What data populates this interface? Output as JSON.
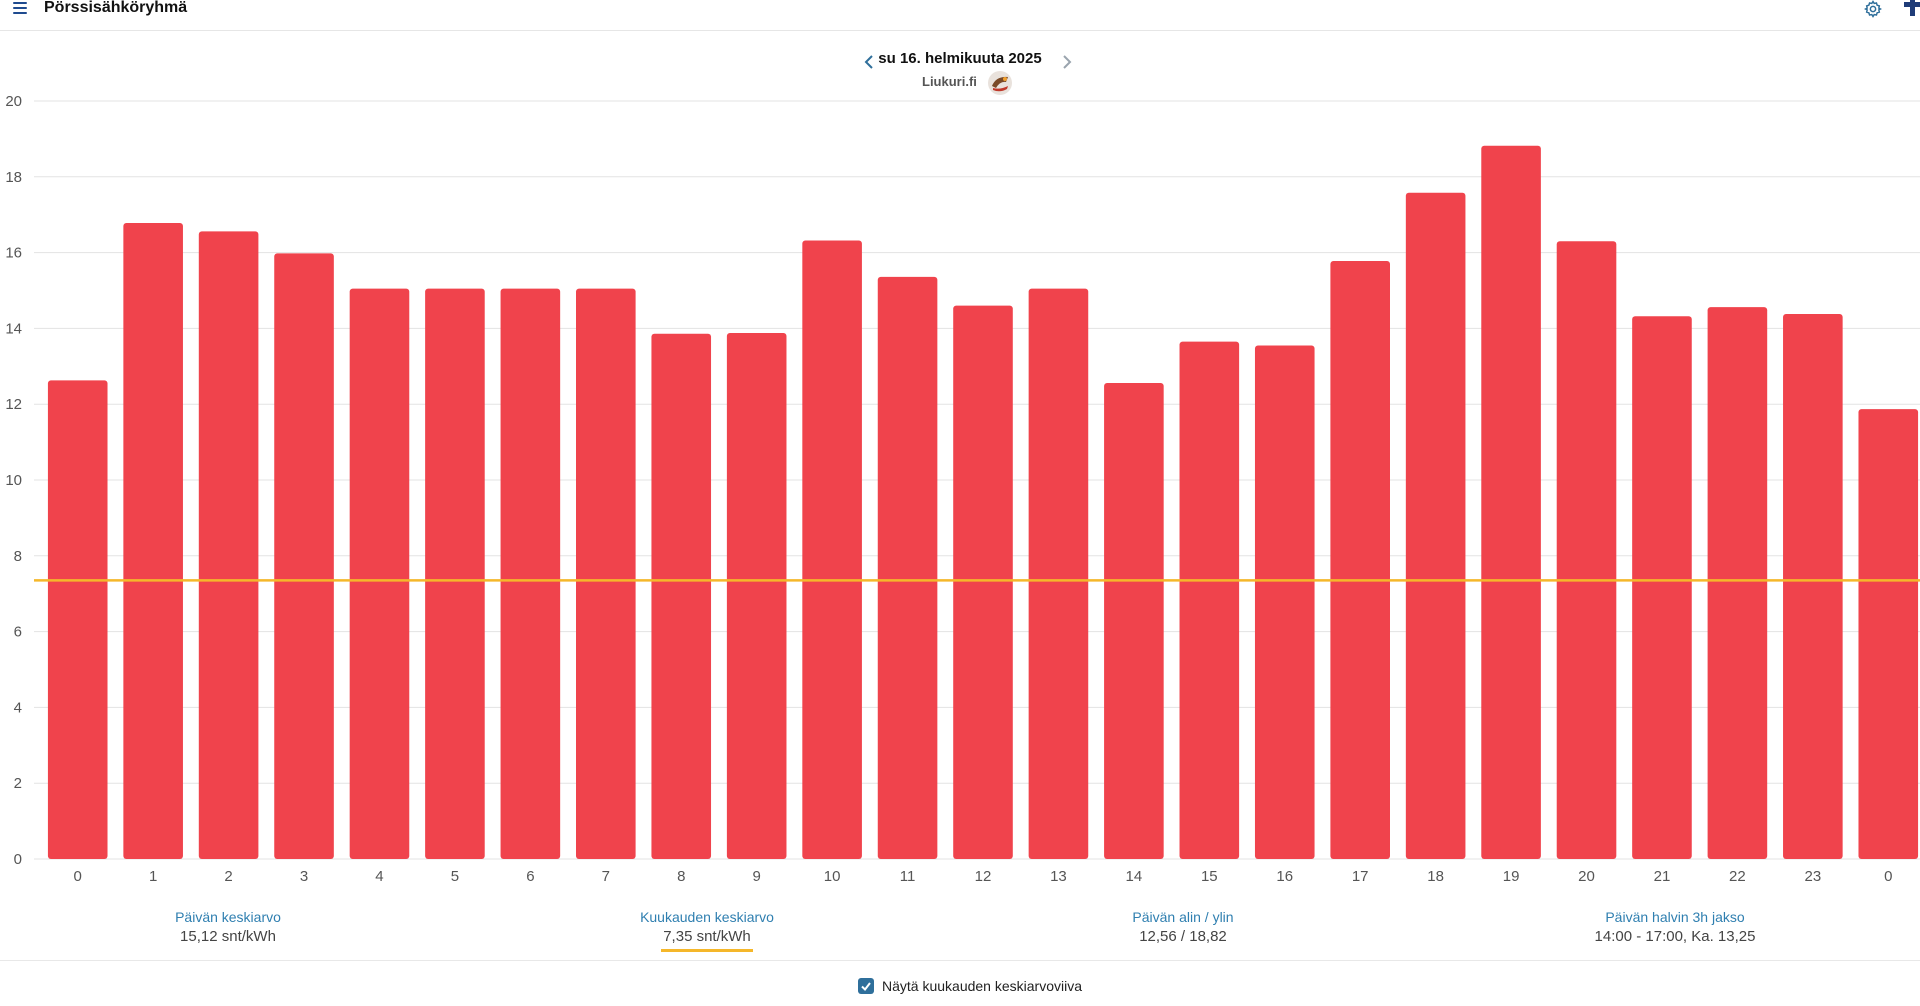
{
  "header": {
    "title": "Pörssisähköryhmä",
    "icons": {
      "menu": "hamburger-menu-icon",
      "settings": "gear-icon",
      "add": "plus-icon"
    }
  },
  "chart_header": {
    "date": "su 16. helmikuuta 2025",
    "source": "Liukuri.fi",
    "prev_icon": "chevron-left-icon",
    "next_icon": "chevron-right-icon"
  },
  "chart_data": {
    "type": "bar",
    "categories": [
      "0",
      "1",
      "2",
      "3",
      "4",
      "5",
      "6",
      "7",
      "8",
      "9",
      "10",
      "11",
      "12",
      "13",
      "14",
      "15",
      "16",
      "17",
      "18",
      "19",
      "20",
      "21",
      "22",
      "23",
      "0"
    ],
    "values": [
      12.63,
      16.78,
      16.56,
      15.98,
      15.05,
      15.05,
      15.05,
      15.05,
      13.86,
      13.88,
      16.32,
      15.36,
      14.6,
      15.05,
      12.56,
      13.65,
      13.55,
      15.78,
      17.58,
      18.82,
      16.3,
      14.32,
      14.56,
      14.38,
      11.87
    ],
    "ylim": [
      0,
      20
    ],
    "yticks": [
      "0",
      "2",
      "4",
      "6",
      "8",
      "10",
      "12",
      "14",
      "16",
      "18",
      "20"
    ],
    "reference_line": 7.35,
    "grid": true,
    "colors": {
      "bar": "#f0434c",
      "reference": "#f5b72a",
      "grid": "#e3e3e3"
    }
  },
  "stats": [
    {
      "label": "Päivän keskiarvo",
      "value": "15,12 snt/kWh"
    },
    {
      "label": "Kuukauden keskiarvo",
      "value": "7,35 snt/kWh"
    },
    {
      "label": "Päivän alin / ylin",
      "value": "12,56 / 18,82"
    },
    {
      "label": "Päivän halvin 3h jakso",
      "value": "14:00 - 17:00, Ka. 13,25"
    }
  ],
  "toggle": {
    "label": "Näytä kuukauden keskiarvoviiva",
    "checked": true
  }
}
